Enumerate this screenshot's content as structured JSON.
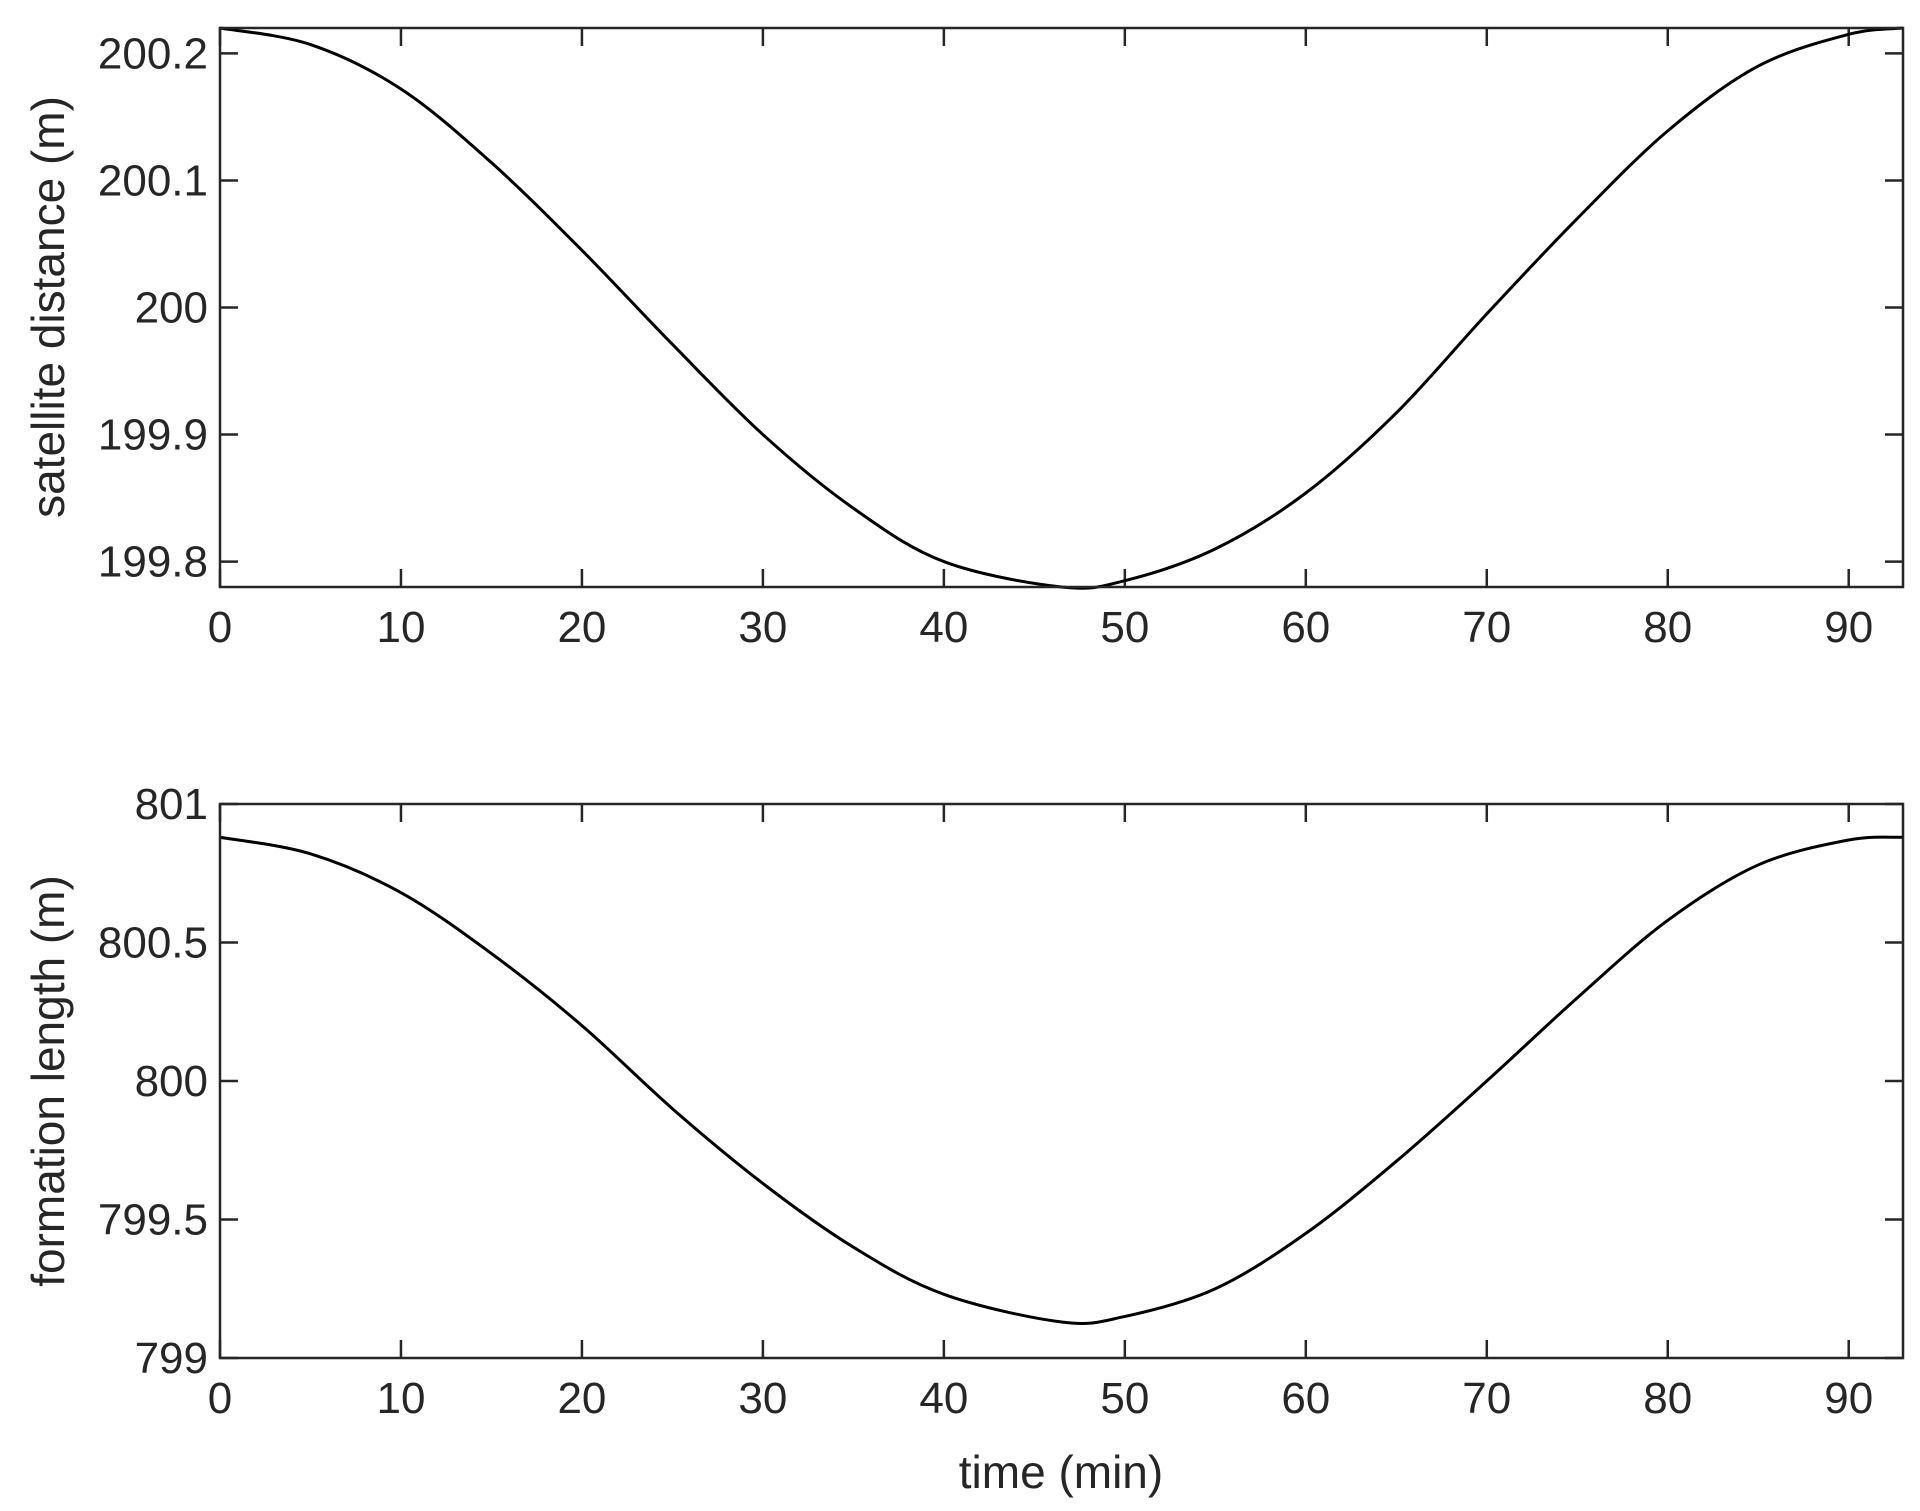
{
  "chart_data": [
    {
      "type": "line",
      "title": "",
      "xlabel": "",
      "ylabel": "satellite distance (m)",
      "xlim": [
        0,
        93
      ],
      "ylim": [
        199.78,
        200.22
      ],
      "xticks": [
        0,
        10,
        20,
        30,
        40,
        50,
        60,
        70,
        80,
        90
      ],
      "xtick_labels": [
        "0",
        "10",
        "20",
        "30",
        "40",
        "50",
        "60",
        "70",
        "80",
        "90"
      ],
      "yticks": [
        199.8,
        199.9,
        200,
        200.1,
        200.2
      ],
      "ytick_labels": [
        "199.8",
        "199.9",
        "200",
        "200.1",
        "200.2"
      ],
      "grid": false,
      "legend": "none",
      "line_color": "#000000",
      "series": [
        {
          "x": [
            0,
            5,
            10,
            15,
            20,
            25,
            30,
            35,
            40,
            46.5,
            50,
            55,
            60,
            65,
            70,
            75,
            80,
            85,
            90,
            93
          ],
          "values": [
            200.22,
            200.207,
            200.172,
            200.114,
            200.045,
            199.971,
            199.9,
            199.842,
            199.8,
            199.78,
            199.785,
            199.81,
            199.854,
            199.917,
            199.995,
            200.07,
            200.139,
            200.19,
            200.215,
            200.22
          ]
        }
      ]
    },
    {
      "type": "line",
      "title": "",
      "xlabel": "time (min)",
      "ylabel": "formation length (m)",
      "xlim": [
        0,
        93
      ],
      "ylim": [
        799,
        801
      ],
      "xticks": [
        0,
        10,
        20,
        30,
        40,
        50,
        60,
        70,
        80,
        90
      ],
      "xtick_labels": [
        "0",
        "10",
        "20",
        "30",
        "40",
        "50",
        "60",
        "70",
        "80",
        "90"
      ],
      "yticks": [
        799,
        799.5,
        800,
        800.5,
        801
      ],
      "ytick_labels": [
        "799",
        "799.5",
        "800",
        "800.5",
        "801"
      ],
      "grid": false,
      "legend": "none",
      "line_color": "#000000",
      "series": [
        {
          "x": [
            0,
            5,
            10,
            15,
            20,
            25,
            30,
            35,
            40,
            46.5,
            50,
            55,
            60,
            65,
            70,
            75,
            80,
            85,
            90,
            93
          ],
          "values": [
            800.88,
            800.82,
            800.68,
            800.46,
            800.2,
            799.9,
            799.63,
            799.4,
            799.23,
            799.13,
            799.15,
            799.25,
            799.45,
            799.71,
            800.0,
            800.3,
            800.58,
            800.78,
            800.87,
            800.88
          ]
        }
      ]
    }
  ]
}
